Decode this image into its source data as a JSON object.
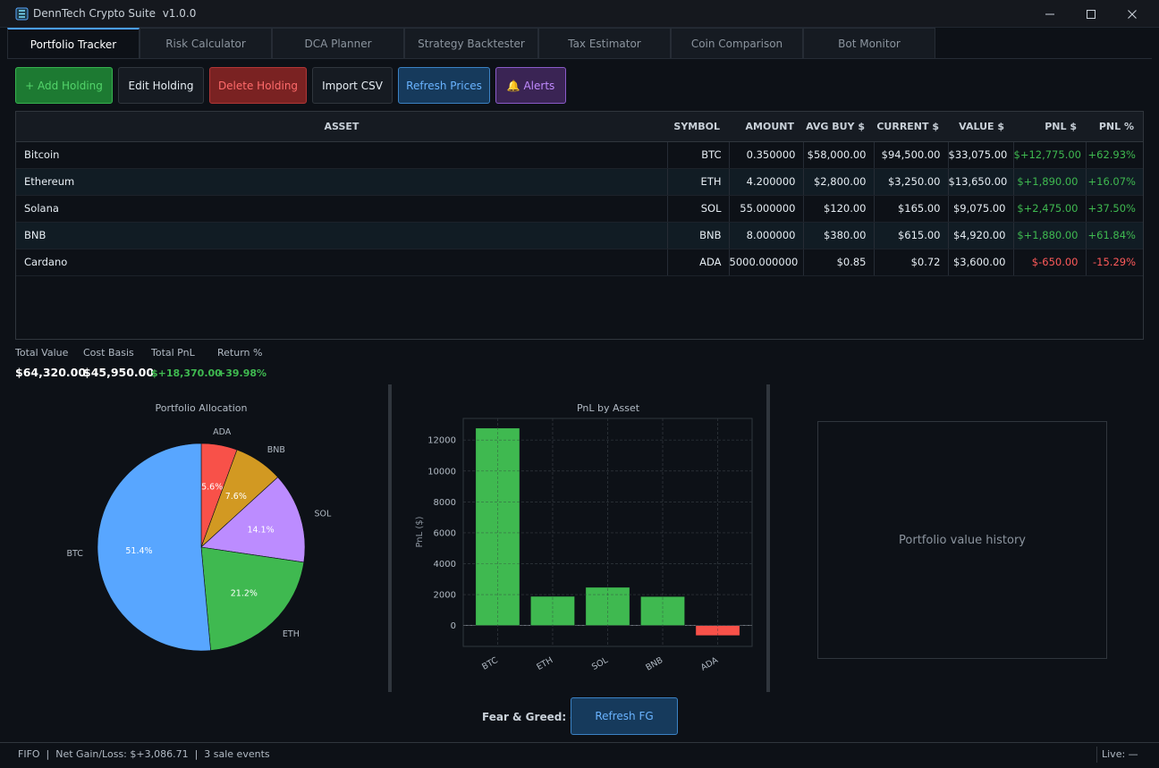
{
  "window": {
    "title": "DennTech Crypto Suite  v1.0.0"
  },
  "tabs": [
    {
      "label": "Portfolio Tracker"
    },
    {
      "label": "Risk Calculator"
    },
    {
      "label": "DCA Planner"
    },
    {
      "label": "Strategy Backtester"
    },
    {
      "label": "Tax Estimator"
    },
    {
      "label": "Coin Comparison"
    },
    {
      "label": "Bot Monitor"
    }
  ],
  "toolbar": {
    "add": "+ Add Holding",
    "edit": "Edit Holding",
    "delete": "Delete Holding",
    "import": "Import CSV",
    "refresh": "Refresh Prices",
    "alerts": "🔔 Alerts"
  },
  "table": {
    "headers": [
      "ASSET",
      "SYMBOL",
      "AMOUNT",
      "AVG BUY $",
      "CURRENT $",
      "VALUE $",
      "PNL $",
      "PNL %"
    ],
    "rows": [
      [
        "Bitcoin",
        "BTC",
        "0.350000",
        "$58,000.00",
        "$94,500.00",
        "$33,075.00",
        "$+12,775.00",
        "+62.93%"
      ],
      [
        "Ethereum",
        "ETH",
        "4.200000",
        "$2,800.00",
        "$3,250.00",
        "$13,650.00",
        "$+1,890.00",
        "+16.07%"
      ],
      [
        "Solana",
        "SOL",
        "55.000000",
        "$120.00",
        "$165.00",
        "$9,075.00",
        "$+2,475.00",
        "+37.50%"
      ],
      [
        "BNB",
        "BNB",
        "8.000000",
        "$380.00",
        "$615.00",
        "$4,920.00",
        "$+1,880.00",
        "+61.84%"
      ],
      [
        "Cardano",
        "ADA",
        "5000.000000",
        "$0.85",
        "$0.72",
        "$3,600.00",
        "$-650.00",
        "-15.29%"
      ]
    ]
  },
  "summary": {
    "total_value_label": "Total Value",
    "total_value": "$64,320.00",
    "cost_basis_label": "Cost Basis",
    "cost_basis": "$45,950.00",
    "total_pnl_label": "Total PnL",
    "total_pnl": "$+18,370.00",
    "return_label": "Return %",
    "return": "+39.98%"
  },
  "chart_data": [
    {
      "type": "pie",
      "title": "Portfolio Allocation",
      "categories": [
        "BTC",
        "ETH",
        "SOL",
        "BNB",
        "ADA"
      ],
      "values": [
        51.4,
        21.2,
        14.1,
        7.6,
        5.6
      ],
      "labels": [
        "51.4%",
        "21.2%",
        "14.1%",
        "7.6%",
        "5.6%"
      ],
      "colors": [
        "#58a6ff",
        "#3fb950",
        "#bc8cff",
        "#d29922",
        "#f85149"
      ]
    },
    {
      "type": "bar",
      "title": "PnL by Asset",
      "ylabel": "PnL ($)",
      "categories": [
        "BTC",
        "ETH",
        "SOL",
        "BNB",
        "ADA"
      ],
      "values": [
        12775,
        1890,
        2475,
        1880,
        -650
      ],
      "ylim": [
        -1350,
        13400
      ],
      "yticks": [
        0,
        2000,
        4000,
        6000,
        8000,
        10000,
        12000
      ],
      "grid": true,
      "colors": {
        "positive": "#3fb950",
        "negative": "#f85149"
      }
    }
  ],
  "history": {
    "placeholder": "Portfolio value history"
  },
  "fear_greed": {
    "label": "Fear & Greed: —",
    "button": "Refresh FG"
  },
  "status": {
    "text": "FIFO  |  Net Gain/Loss: $+3,086.71  |  3 sale events",
    "live": "Live: —"
  }
}
